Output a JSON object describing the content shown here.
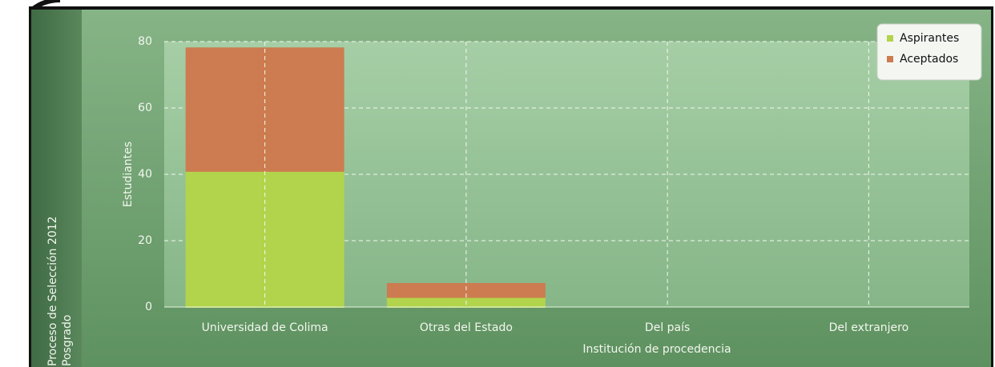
{
  "chart_data": {
    "type": "stacked_bar",
    "title": "Proceso de Selección 2012",
    "subtitle": "Posgrado",
    "x_label": "Institución de procedencia",
    "y_label": "Estudiantes",
    "categories": [
      "Universidad de Colima",
      "Otras del Estado",
      "Del país",
      "Del extranjero"
    ],
    "series": [
      {
        "name": "Aspirantes",
        "color": "#b2d44c",
        "values": [
          41,
          3,
          0,
          0
        ]
      },
      {
        "name": "Aceptados",
        "color": "#cc7c50",
        "values": [
          37,
          4,
          0,
          0
        ]
      }
    ],
    "ylim": [
      0,
      80
    ],
    "yticks": [
      0,
      20,
      40,
      60,
      80
    ],
    "grid": true,
    "legend": "top-right"
  }
}
